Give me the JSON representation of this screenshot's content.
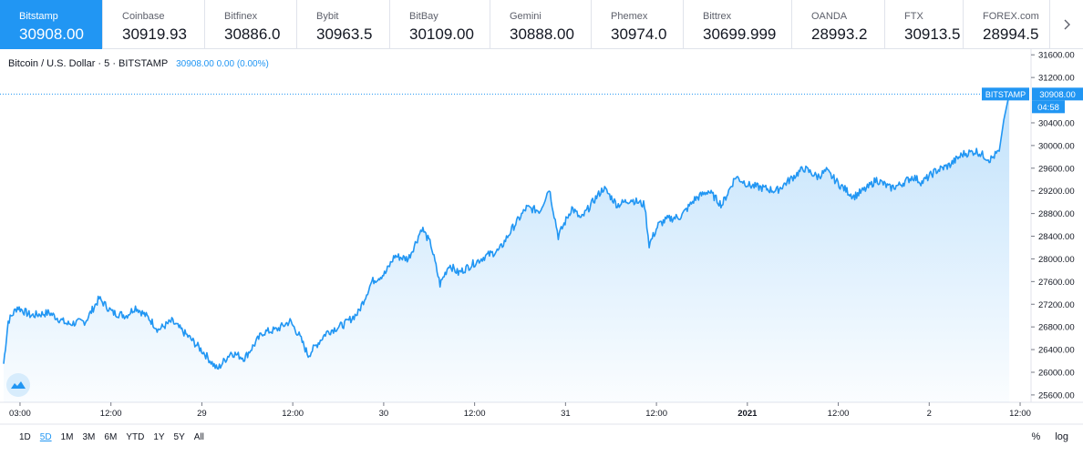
{
  "exchanges": [
    {
      "name": "Bitstamp",
      "price": "30908.00"
    },
    {
      "name": "Coinbase",
      "price": "30919.93"
    },
    {
      "name": "Bitfinex",
      "price": "30886.0"
    },
    {
      "name": "Bybit",
      "price": "30963.5"
    },
    {
      "name": "BitBay",
      "price": "30109.00"
    },
    {
      "name": "Gemini",
      "price": "30888.00"
    },
    {
      "name": "Phemex",
      "price": "30974.0"
    },
    {
      "name": "Bittrex",
      "price": "30699.999"
    },
    {
      "name": "OANDA",
      "price": "28993.2"
    },
    {
      "name": "FTX",
      "price": "30913.5"
    },
    {
      "name": "FOREX.com",
      "price": "28994.5"
    }
  ],
  "symbol": {
    "title": "Bitcoin / U.S. Dollar · 5 · BITSTAMP",
    "values": "30908.00  0.00 (0.00%)"
  },
  "range_buttons": [
    "1D",
    "5D",
    "1M",
    "3M",
    "6M",
    "YTD",
    "1Y",
    "5Y",
    "All"
  ],
  "selected_range": "5D",
  "tools": {
    "percent": "%",
    "log": "log"
  },
  "chart_data": {
    "type": "area",
    "series": [
      {
        "name": "BITSTAMP",
        "color": "#2196f3",
        "points": [
          [
            0,
            26150
          ],
          [
            0.05,
            26900
          ],
          [
            0.15,
            27150
          ],
          [
            0.3,
            27000
          ],
          [
            0.5,
            27050
          ],
          [
            0.7,
            26850
          ],
          [
            0.9,
            26900
          ],
          [
            1.05,
            27300
          ],
          [
            1.2,
            27050
          ],
          [
            1.35,
            27000
          ],
          [
            1.45,
            27150
          ],
          [
            1.6,
            26950
          ],
          [
            1.7,
            26750
          ],
          [
            1.85,
            26900
          ],
          [
            2.05,
            26600
          ],
          [
            2.2,
            26350
          ],
          [
            2.35,
            26050
          ],
          [
            2.5,
            26350
          ],
          [
            2.65,
            26250
          ],
          [
            2.85,
            26700
          ],
          [
            3.0,
            26750
          ],
          [
            3.15,
            26900
          ],
          [
            3.25,
            26650
          ],
          [
            3.35,
            26300
          ],
          [
            3.55,
            26700
          ],
          [
            3.75,
            26850
          ],
          [
            3.9,
            27050
          ],
          [
            4.05,
            27600
          ],
          [
            4.2,
            27750
          ],
          [
            4.3,
            28050
          ],
          [
            4.45,
            28000
          ],
          [
            4.55,
            28350
          ],
          [
            4.6,
            28550
          ],
          [
            4.7,
            28250
          ],
          [
            4.8,
            27550
          ],
          [
            4.9,
            27900
          ],
          [
            5.0,
            27750
          ],
          [
            5.15,
            27900
          ],
          [
            5.3,
            28050
          ],
          [
            5.45,
            28150
          ],
          [
            5.6,
            28550
          ],
          [
            5.75,
            28900
          ],
          [
            5.9,
            28850
          ],
          [
            6.0,
            29250
          ],
          [
            6.1,
            28400
          ],
          [
            6.25,
            28900
          ],
          [
            6.35,
            28700
          ],
          [
            6.5,
            29050
          ],
          [
            6.6,
            29250
          ],
          [
            6.75,
            28950
          ],
          [
            6.9,
            29050
          ],
          [
            7.05,
            28950
          ],
          [
            7.1,
            28250
          ],
          [
            7.2,
            28600
          ],
          [
            7.3,
            28700
          ],
          [
            7.45,
            28750
          ],
          [
            7.6,
            29050
          ],
          [
            7.75,
            29200
          ],
          [
            7.9,
            28950
          ],
          [
            8.05,
            29450
          ],
          [
            8.2,
            29300
          ],
          [
            8.35,
            29250
          ],
          [
            8.5,
            29200
          ],
          [
            8.65,
            29400
          ],
          [
            8.8,
            29600
          ],
          [
            8.95,
            29450
          ],
          [
            9.05,
            29550
          ],
          [
            9.2,
            29300
          ],
          [
            9.35,
            29100
          ],
          [
            9.5,
            29250
          ],
          [
            9.6,
            29400
          ],
          [
            9.75,
            29250
          ],
          [
            9.85,
            29300
          ],
          [
            10.0,
            29450
          ],
          [
            10.1,
            29350
          ],
          [
            10.25,
            29550
          ],
          [
            10.4,
            29650
          ],
          [
            10.55,
            29850
          ],
          [
            10.7,
            29900
          ],
          [
            10.85,
            29750
          ],
          [
            10.95,
            29900
          ],
          [
            11.0,
            30450
          ],
          [
            11.06,
            30908
          ]
        ]
      }
    ],
    "y_ticks": [
      25600,
      26000,
      26400,
      26800,
      27200,
      27600,
      28000,
      28400,
      28800,
      29200,
      29600,
      30000,
      30400,
      31200,
      31600
    ],
    "y_tick_labels": [
      "25600.00",
      "26000.00",
      "26400.00",
      "26800.00",
      "27200.00",
      "27600.00",
      "28000.00",
      "28400.00",
      "28800.00",
      "29200.00",
      "29600.00",
      "30000.00",
      "30400.00",
      "31200.00",
      "31600.00"
    ],
    "ylim": [
      25470,
      31700
    ],
    "x_ticks": [
      {
        "x": 0.18,
        "label": "03:00"
      },
      {
        "x": 1.18,
        "label": "12:00"
      },
      {
        "x": 2.18,
        "label": "29"
      },
      {
        "x": 3.18,
        "label": "12:00"
      },
      {
        "x": 4.18,
        "label": "30"
      },
      {
        "x": 5.18,
        "label": "12:00"
      },
      {
        "x": 6.18,
        "label": "31"
      },
      {
        "x": 7.18,
        "label": "12:00"
      },
      {
        "x": 8.18,
        "label": "2021"
      },
      {
        "x": 9.18,
        "label": "12:00"
      },
      {
        "x": 10.18,
        "label": "2"
      },
      {
        "x": 11.18,
        "label": "12:00"
      }
    ],
    "xlim": [
      0,
      11.3
    ],
    "last_price_label": "30908.00",
    "last_price_value": 30908,
    "series_tag": "BITSTAMP",
    "countdown": "04:58",
    "grid": false
  }
}
